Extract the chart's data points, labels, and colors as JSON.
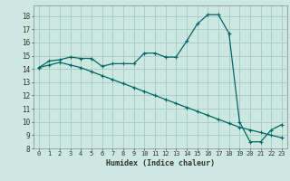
{
  "xlabel": "Humidex (Indice chaleur)",
  "bg_color": "#cce8e0",
  "grid_color": "#aacfc8",
  "line_color": "#006666",
  "xlim": [
    -0.5,
    23.5
  ],
  "ylim": [
    8,
    18.8
  ],
  "xticks": [
    0,
    1,
    2,
    3,
    4,
    5,
    6,
    7,
    8,
    9,
    10,
    11,
    12,
    13,
    14,
    15,
    16,
    17,
    18,
    19,
    20,
    21,
    22,
    23
  ],
  "yticks": [
    8,
    9,
    10,
    11,
    12,
    13,
    14,
    15,
    16,
    17,
    18
  ],
  "curve1_x": [
    0,
    1,
    2,
    3,
    4,
    5,
    6,
    7,
    8,
    9,
    10,
    11,
    12,
    13,
    14,
    15,
    16,
    17,
    18,
    19,
    20,
    21,
    22,
    23
  ],
  "curve1_y": [
    14.1,
    14.6,
    14.7,
    14.9,
    14.8,
    14.8,
    14.2,
    14.4,
    14.4,
    14.4,
    15.2,
    15.2,
    14.9,
    14.9,
    16.1,
    17.4,
    18.1,
    18.1,
    16.7,
    10.0,
    8.5,
    8.5,
    9.4,
    9.8
  ],
  "curve2_x": [
    0,
    1,
    2,
    3,
    4,
    5,
    6,
    7,
    8,
    9,
    10,
    11,
    12,
    13,
    14,
    15,
    16,
    17,
    18,
    19,
    20,
    21,
    22,
    23
  ],
  "curve2_y": [
    14.1,
    14.3,
    14.5,
    14.3,
    14.1,
    13.8,
    13.5,
    13.2,
    12.9,
    12.6,
    12.3,
    12.0,
    11.7,
    11.4,
    11.1,
    10.8,
    10.5,
    10.2,
    9.9,
    9.6,
    9.4,
    9.2,
    9.0,
    8.8
  ]
}
